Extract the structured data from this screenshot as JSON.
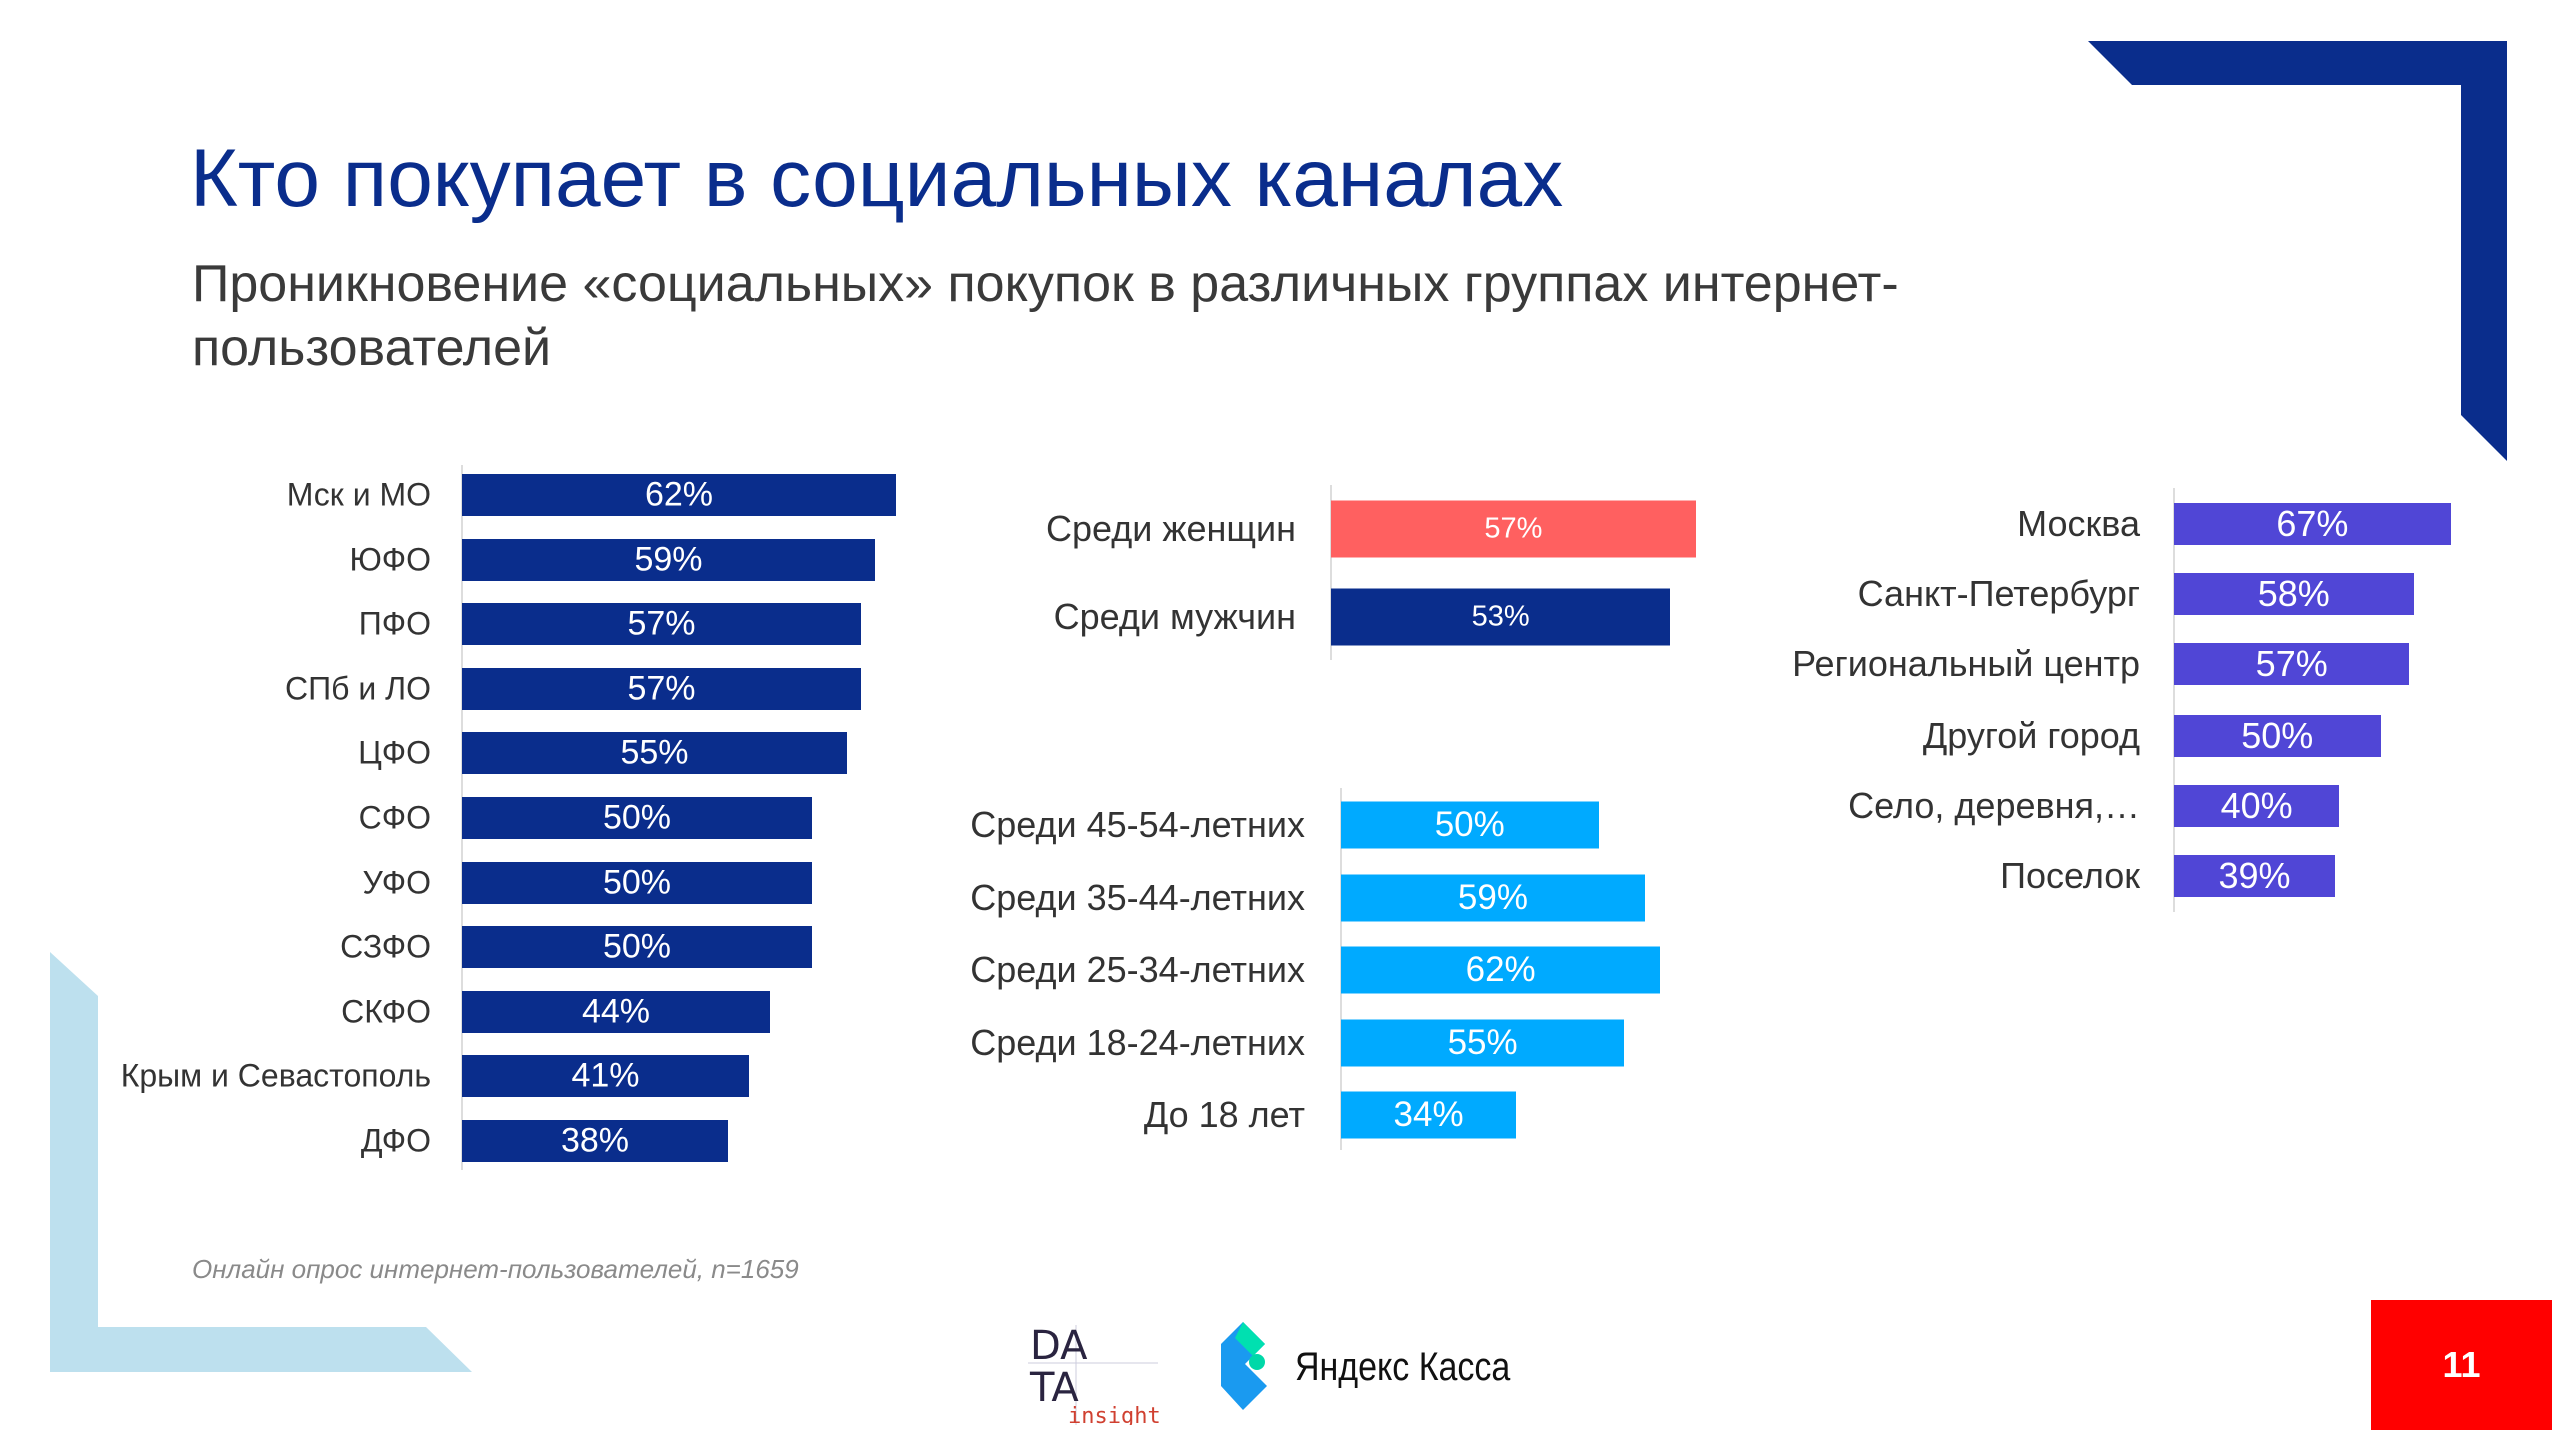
{
  "title": "Кто покупает в социальных каналах",
  "subtitle": "Проникновение «социальных» покупок в различных группах интернет-пользователей",
  "footnote": "Онлайн опрос интернет-пользователей, n=1659",
  "page_number": "11",
  "logos": {
    "data_insight": "DATA insight",
    "yandex": "Яндекс Касса"
  },
  "colors": {
    "navy": "#0a2d8c",
    "women": "#ff6060",
    "age": "#00aaff",
    "city": "#5046d6",
    "page_badge": "#ff0000",
    "decor_light": "#bde0ee"
  },
  "chart_data": [
    {
      "type": "bar",
      "orientation": "horizontal",
      "categories": [
        "Мск и МО",
        "ЮФО",
        "ПФО",
        "СПб и ЛО",
        "ЦФО",
        "СФО",
        "УФО",
        "СЗФО",
        "СКФО",
        "Крым и Севастополь",
        "ДФО"
      ],
      "values": [
        62,
        59,
        57,
        57,
        55,
        50,
        50,
        50,
        44,
        41,
        38
      ],
      "labels": [
        "62%",
        "59%",
        "57%",
        "57%",
        "55%",
        "50%",
        "50%",
        "50%",
        "44%",
        "41%",
        "38%"
      ]
    },
    {
      "type": "bar",
      "orientation": "horizontal",
      "categories": [
        "Среди женщин",
        "Среди мужчин"
      ],
      "values": [
        57,
        53
      ],
      "labels": [
        "57%",
        "53%"
      ]
    },
    {
      "type": "bar",
      "orientation": "horizontal",
      "categories": [
        "Среди 45-54-летних",
        "Среди 35-44-летних",
        "Среди 25-34-летних",
        "Среди 18-24-летних",
        "До 18 лет"
      ],
      "values": [
        50,
        59,
        62,
        55,
        34
      ],
      "labels": [
        "50%",
        "59%",
        "62%",
        "55%",
        "34%"
      ]
    },
    {
      "type": "bar",
      "orientation": "horizontal",
      "categories": [
        "Москва",
        "Санкт-Петербург",
        "Региональный центр",
        "Другой город",
        "Село, деревня,…",
        "Поселок"
      ],
      "values": [
        67,
        58,
        57,
        50,
        40,
        39
      ],
      "labels": [
        "67%",
        "58%",
        "57%",
        "50%",
        "40%",
        "39%"
      ]
    }
  ]
}
